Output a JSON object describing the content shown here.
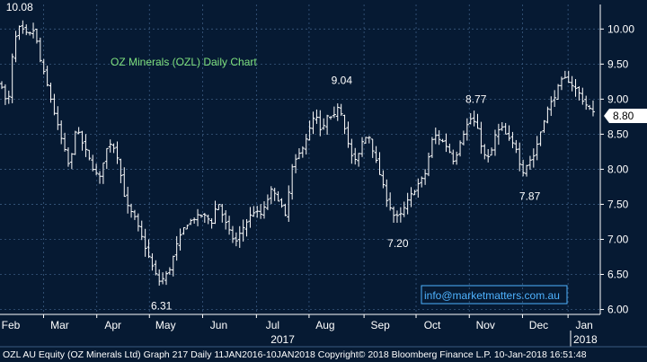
{
  "chart_data": {
    "type": "ohlc",
    "title": "OZ Minerals (OZL) Daily Chart",
    "watermark": "info@marketmatters.com.au",
    "current_price_label": "8.80",
    "ylim": [
      5.93,
      10.35
    ],
    "yticks": [
      "6.00",
      "6.50",
      "7.00",
      "7.50",
      "8.00",
      "8.50",
      "9.00",
      "9.50",
      "10.00"
    ],
    "x_months": [
      "Feb",
      "Mar",
      "Apr",
      "May",
      "Jun",
      "Jul",
      "Aug",
      "Sep",
      "Oct",
      "Nov",
      "Dec",
      "Jan"
    ],
    "x_years": [
      "2017",
      "2018"
    ],
    "annotations": [
      {
        "text": "10.08",
        "value": 10.08
      },
      {
        "text": "6.31",
        "value": 6.31
      },
      {
        "text": "9.04",
        "value": 9.04
      },
      {
        "text": "7.20",
        "value": 7.2
      },
      {
        "text": "8.77",
        "value": 8.77
      },
      {
        "text": "7.87",
        "value": 7.87
      }
    ],
    "close_path": [
      [
        0.0,
        9.2
      ],
      [
        0.01,
        8.85
      ],
      [
        0.02,
        9.8
      ],
      [
        0.03,
        10.02
      ],
      [
        0.045,
        9.9
      ],
      [
        0.055,
        10.0
      ],
      [
        0.065,
        9.55
      ],
      [
        0.08,
        9.1
      ],
      [
        0.095,
        8.6
      ],
      [
        0.105,
        8.3
      ],
      [
        0.115,
        8.0
      ],
      [
        0.125,
        8.6
      ],
      [
        0.14,
        8.3
      ],
      [
        0.155,
        8.0
      ],
      [
        0.165,
        7.85
      ],
      [
        0.175,
        8.25
      ],
      [
        0.185,
        8.4
      ],
      [
        0.195,
        8.2
      ],
      [
        0.21,
        7.5
      ],
      [
        0.225,
        7.3
      ],
      [
        0.24,
        6.95
      ],
      [
        0.255,
        6.6
      ],
      [
        0.265,
        6.4
      ],
      [
        0.275,
        6.45
      ],
      [
        0.285,
        6.6
      ],
      [
        0.295,
        6.9
      ],
      [
        0.31,
        7.2
      ],
      [
        0.325,
        7.3
      ],
      [
        0.34,
        7.35
      ],
      [
        0.355,
        7.25
      ],
      [
        0.365,
        7.55
      ],
      [
        0.375,
        7.3
      ],
      [
        0.385,
        7.1
      ],
      [
        0.395,
        6.95
      ],
      [
        0.41,
        7.2
      ],
      [
        0.425,
        7.4
      ],
      [
        0.44,
        7.35
      ],
      [
        0.455,
        7.7
      ],
      [
        0.47,
        7.55
      ],
      [
        0.48,
        7.3
      ],
      [
        0.49,
        8.0
      ],
      [
        0.505,
        8.25
      ],
      [
        0.52,
        8.55
      ],
      [
        0.53,
        8.8
      ],
      [
        0.54,
        8.5
      ],
      [
        0.55,
        8.75
      ],
      [
        0.56,
        8.7
      ],
      [
        0.57,
        8.95
      ],
      [
        0.58,
        8.6
      ],
      [
        0.59,
        8.2
      ],
      [
        0.6,
        8.1
      ],
      [
        0.61,
        8.4
      ],
      [
        0.62,
        8.5
      ],
      [
        0.63,
        8.2
      ],
      [
        0.64,
        7.9
      ],
      [
        0.65,
        7.6
      ],
      [
        0.665,
        7.3
      ],
      [
        0.675,
        7.35
      ],
      [
        0.69,
        7.6
      ],
      [
        0.705,
        7.8
      ],
      [
        0.715,
        7.9
      ],
      [
        0.73,
        8.5
      ],
      [
        0.745,
        8.4
      ],
      [
        0.755,
        8.3
      ],
      [
        0.765,
        8.1
      ],
      [
        0.775,
        8.4
      ],
      [
        0.785,
        8.6
      ],
      [
        0.795,
        8.75
      ],
      [
        0.805,
        8.55
      ],
      [
        0.815,
        8.2
      ],
      [
        0.825,
        8.15
      ],
      [
        0.835,
        8.5
      ],
      [
        0.845,
        8.6
      ],
      [
        0.855,
        8.45
      ],
      [
        0.87,
        8.3
      ],
      [
        0.88,
        7.95
      ],
      [
        0.89,
        8.1
      ],
      [
        0.9,
        8.2
      ],
      [
        0.91,
        8.5
      ],
      [
        0.92,
        8.8
      ],
      [
        0.935,
        9.05
      ],
      [
        0.945,
        9.25
      ],
      [
        0.955,
        9.3
      ],
      [
        0.965,
        9.2
      ],
      [
        0.975,
        9.1
      ],
      [
        0.985,
        8.95
      ],
      [
        1.0,
        8.8
      ]
    ]
  },
  "footer": {
    "text": "OZL AU Equity (OZ Minerals Ltd) Graph 217  Daily 11JAN2016-10JAN2018  Copyright© 2018 Bloomberg Finance L.P.    10-Jan-2018 16:51:48"
  }
}
